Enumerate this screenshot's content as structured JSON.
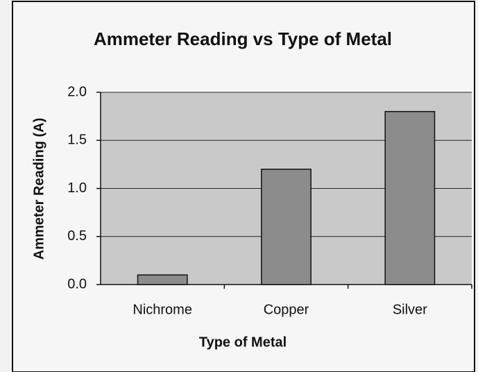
{
  "chart_data": {
    "type": "bar",
    "title": "Ammeter Reading vs Type of Metal",
    "x_label": "Type of Metal",
    "y_label": "Ammeter Reading (A)",
    "categories": [
      "Nichrome",
      "Copper",
      "Silver"
    ],
    "values": [
      0.1,
      1.2,
      1.8
    ],
    "color": "#8c8c8c",
    "ylim": [
      0,
      2
    ],
    "yticks": [
      {
        "value": 0,
        "label": "0.0"
      },
      0.5,
      {
        "value": 1,
        "label": "1.0"
      },
      1.5,
      {
        "value": 2,
        "label": "2.0"
      }
    ],
    "grid": true
  }
}
